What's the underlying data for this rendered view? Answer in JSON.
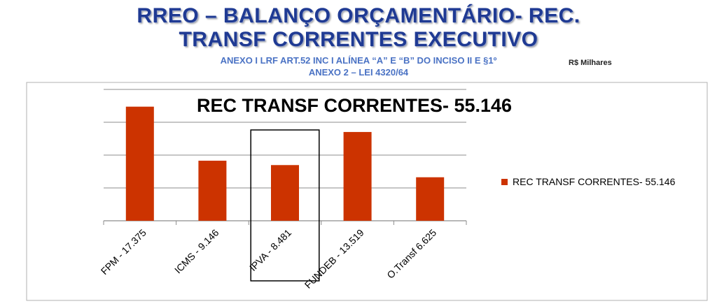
{
  "header": {
    "title_line1": "RREO – BALANÇO ORÇAMENTÁRIO- REC.",
    "title_line2": "TRANSF CORRENTES EXECUTIVO",
    "subtitle_line1": "ANEXO I LRF ART.52 INC I ALÍNEA “A” E “B” DO INCISO II E §1º",
    "subtitle_line2": "ANEXO 2 – LEI 4320/64",
    "unit": "R$ Milhares"
  },
  "chart_data": {
    "type": "bar",
    "title": "REC TRANSF CORRENTES- 55.146",
    "categories": [
      "FPM - 17.375",
      "ICMS - 9.146",
      "IPVA - 8.481",
      "FUNDEB - 13.519",
      "O.Transf 6.625"
    ],
    "series": [
      {
        "name": "REC TRANSF CORRENTES- 55.146",
        "values": [
          17375,
          9146,
          8481,
          13519,
          6625
        ]
      }
    ],
    "ylim": [
      0,
      20000
    ],
    "grid": true,
    "legend": "right",
    "highlighted_category": "IPVA - 8.481",
    "colors": {
      "bar": "#cc3300",
      "grid": "#8c8c8c",
      "axis": "#8c8c8c"
    }
  }
}
